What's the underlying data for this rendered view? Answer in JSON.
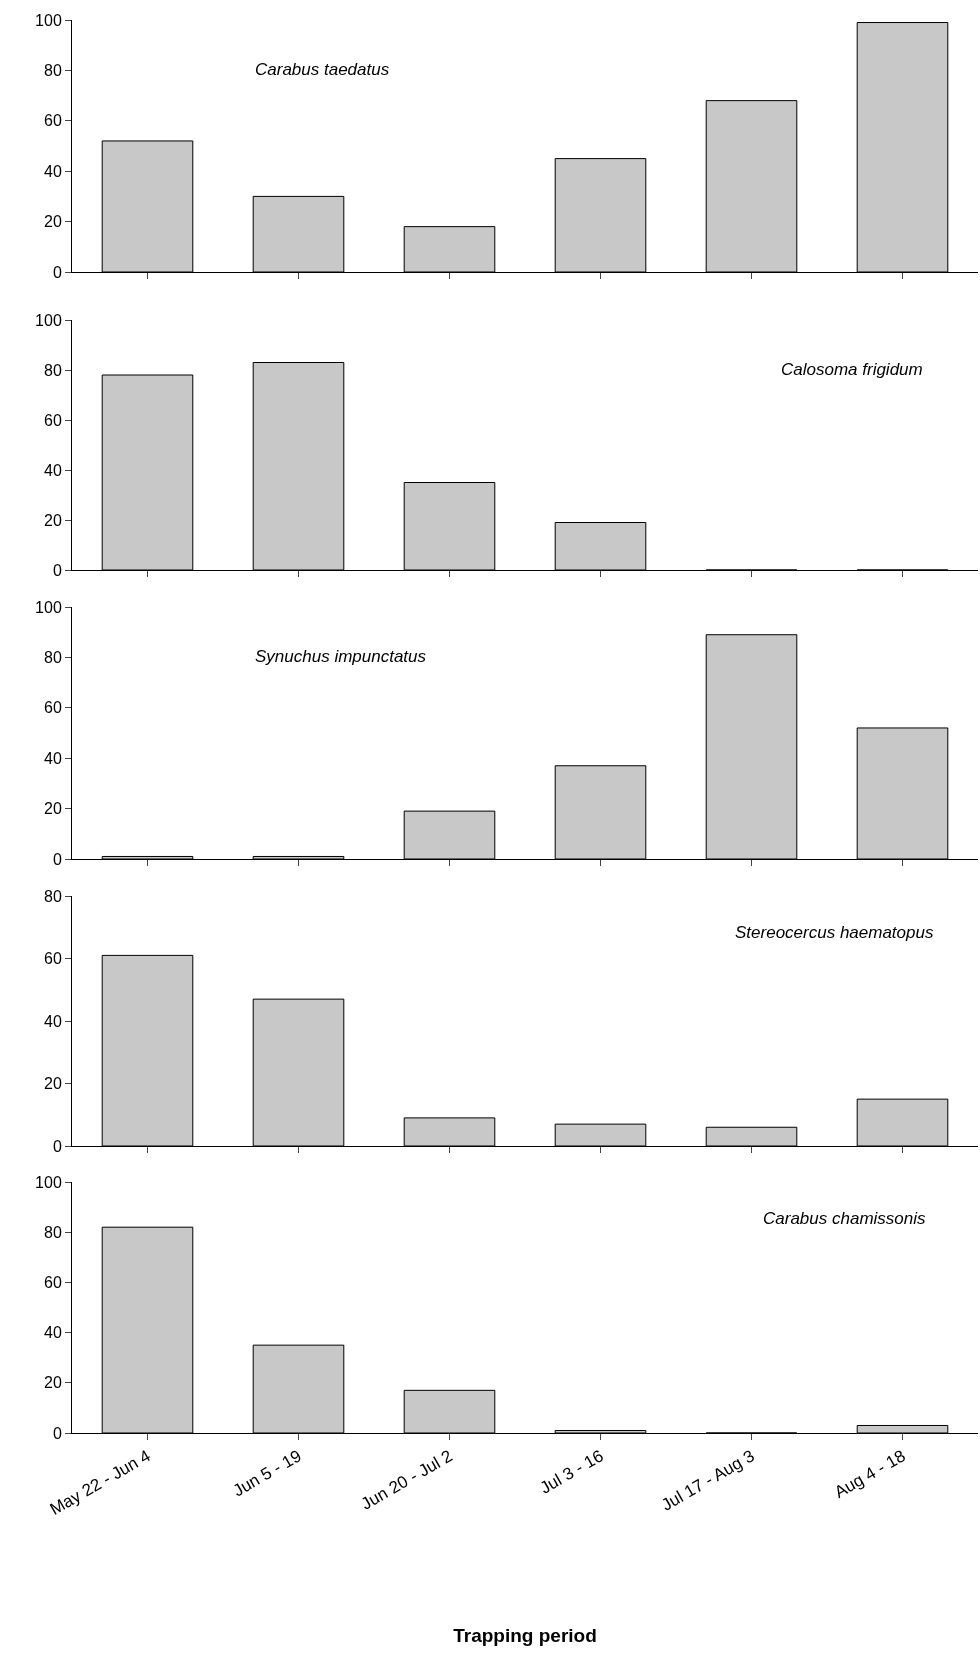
{
  "chart_data": [
    {
      "type": "bar",
      "categories": [
        null,
        null,
        null,
        null,
        null,
        null
      ],
      "values": [
        52,
        30,
        18,
        45,
        68,
        99
      ],
      "color": "#c8c8c8",
      "ylim": [
        0,
        100
      ],
      "yticks": [
        0,
        20,
        40,
        60,
        80,
        100
      ],
      "annotations": [
        "Carabus taedatus"
      ],
      "tick_labels": "y"
    },
    {
      "type": "bar",
      "categories": [
        null,
        null,
        null,
        null,
        null,
        null
      ],
      "values": [
        78,
        83,
        35,
        19,
        0,
        0
      ],
      "color": "#c8c8c8",
      "ylim": [
        0,
        100
      ],
      "yticks": [
        0,
        20,
        40,
        60,
        80,
        100
      ],
      "annotations": [
        "Calosoma frigidum"
      ],
      "tick_labels": "y"
    },
    {
      "type": "bar",
      "categories": [
        null,
        null,
        null,
        null,
        null,
        null
      ],
      "values": [
        1,
        1,
        19,
        37,
        89,
        52
      ],
      "color": "#c8c8c8",
      "ylim": [
        0,
        100
      ],
      "yticks": [
        0,
        20,
        40,
        60,
        80,
        100
      ],
      "annotations": [
        "Synuchus impunctatus"
      ],
      "tick_labels": "y"
    },
    {
      "type": "bar",
      "categories": [
        null,
        null,
        null,
        null,
        null,
        null
      ],
      "values": [
        61,
        47,
        9,
        7,
        6,
        15
      ],
      "color": "#c8c8c8",
      "ylim": [
        0,
        80
      ],
      "yticks": [
        0,
        20,
        40,
        60,
        80
      ],
      "annotations": [
        "Stereocercus haematopus"
      ],
      "tick_labels": "y"
    },
    {
      "type": "bar",
      "categories": [
        "May 22 - Jun 4",
        "Jun 5 - 19",
        "Jun 20 - Jul 2",
        "Jul 3 - 16",
        "Jul 17 - Aug 3",
        "Aug 4 - 18"
      ],
      "values": [
        82,
        35,
        17,
        1,
        0,
        3
      ],
      "color": "#c8c8c8",
      "ylim": [
        0,
        100
      ],
      "yticks": [
        0,
        20,
        40,
        60,
        80,
        100
      ],
      "annotations": [
        "Carabus chamissonis"
      ],
      "xlabel": "Trapping period"
    }
  ]
}
